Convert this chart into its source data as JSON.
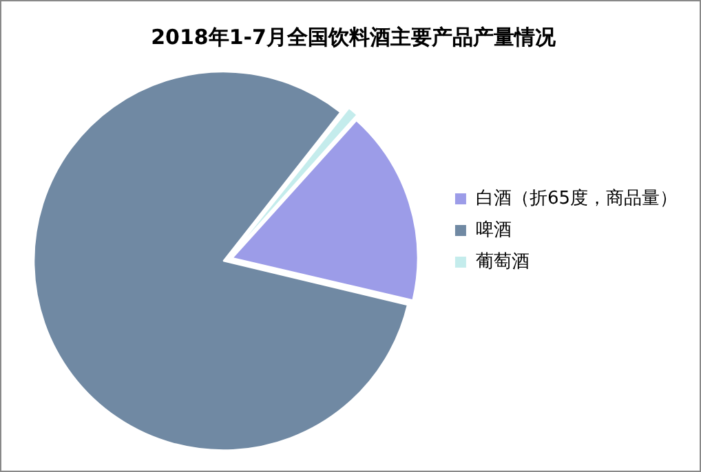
{
  "chart_data": {
    "type": "pie",
    "title": "2018年1-7月全国饮料酒主要产品产量情况",
    "categories": [
      "白酒（折65度，商品量）",
      "啤酒",
      "葡萄酒"
    ],
    "values": [
      17,
      82,
      1
    ],
    "colors": [
      "#9c9ce8",
      "#7089a3",
      "#c4ecec"
    ],
    "legend": "right"
  }
}
